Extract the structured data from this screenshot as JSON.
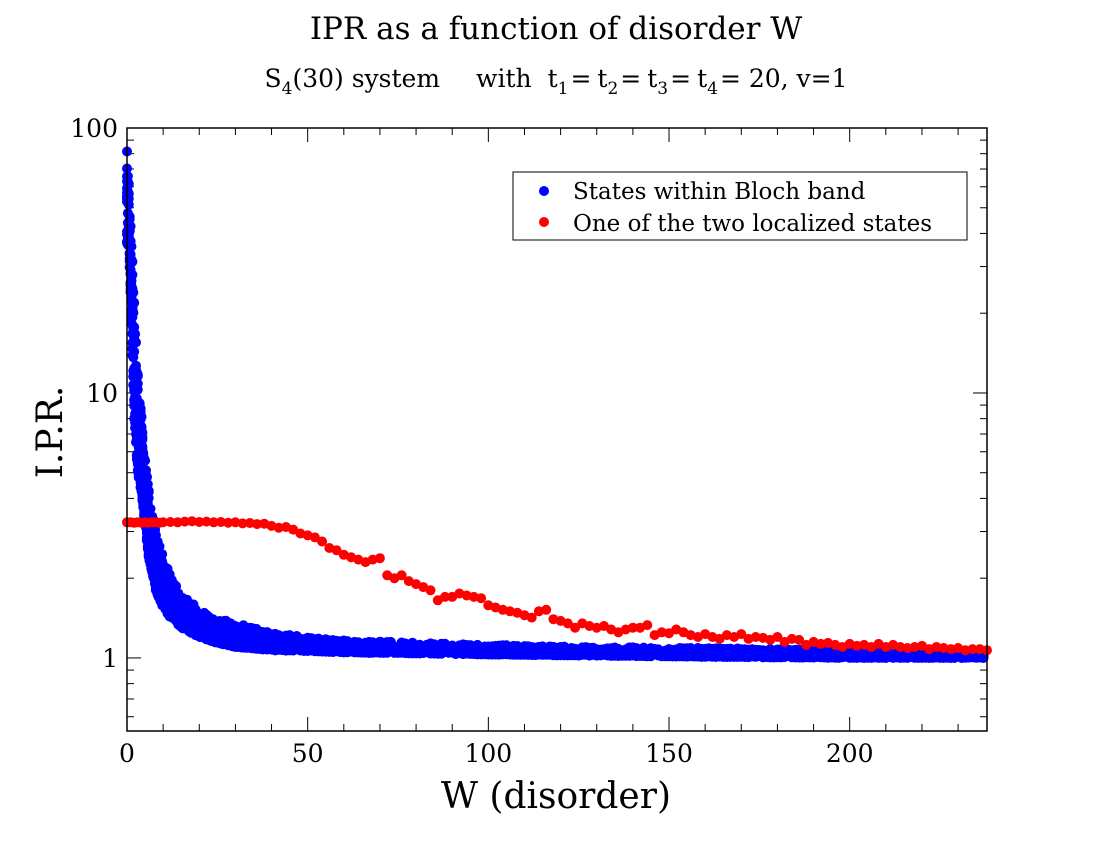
{
  "chart_data": {
    "type": "scatter",
    "title": "IPR as a function of disorder W",
    "subtitle": {
      "system_prefix": "S",
      "system_sub": "4",
      "system_rest": "(30) system",
      "with_word": "with",
      "params": [
        {
          "base": "t",
          "sub": "1"
        },
        {
          "base": "t",
          "sub": "2"
        },
        {
          "base": "t",
          "sub": "3"
        },
        {
          "base": "t",
          "sub": "4"
        }
      ],
      "tail": "= 20, v=1"
    },
    "xlabel": "W (disorder)",
    "ylabel": "I.P.R.",
    "xlim": [
      0,
      238
    ],
    "ylim": [
      0.53,
      100
    ],
    "yscale": "log",
    "xticks": [
      0,
      50,
      100,
      150,
      200
    ],
    "xtick_labels": [
      "0",
      "50",
      "100",
      "150",
      "200"
    ],
    "yticks": [
      1,
      10,
      100
    ],
    "ytick_labels": [
      "1",
      "10",
      "100"
    ],
    "legend_position": "top-right",
    "series": [
      {
        "name": "States within Bloch band",
        "color": "#0000ff",
        "band": [
          [
            0.0,
            35,
            82
          ],
          [
            0.5,
            36,
            63
          ],
          [
            1.0,
            24,
            45
          ],
          [
            2.0,
            8,
            22
          ],
          [
            3.0,
            5.0,
            12
          ],
          [
            4.0,
            4.2,
            8.2
          ],
          [
            5.0,
            3.2,
            5.6
          ],
          [
            6.0,
            2.4,
            4.3
          ],
          [
            7.0,
            2.1,
            3.6
          ],
          [
            8.0,
            1.8,
            3.0
          ],
          [
            10.0,
            1.55,
            2.4
          ],
          [
            12.0,
            1.42,
            2.05
          ],
          [
            15.0,
            1.3,
            1.75
          ],
          [
            20.0,
            1.2,
            1.55
          ],
          [
            25.0,
            1.14,
            1.43
          ],
          [
            30.0,
            1.1,
            1.35
          ],
          [
            40.0,
            1.07,
            1.26
          ],
          [
            50.0,
            1.06,
            1.2
          ],
          [
            60.0,
            1.05,
            1.17
          ],
          [
            80.0,
            1.04,
            1.14
          ],
          [
            100.0,
            1.03,
            1.12
          ],
          [
            130.0,
            1.02,
            1.1
          ],
          [
            160.0,
            1.01,
            1.09
          ],
          [
            200.0,
            1.0,
            1.07
          ],
          [
            238.0,
            1.0,
            1.06
          ]
        ]
      },
      {
        "name": "One of the two localized states",
        "color": "#ff0000",
        "points": [
          [
            0,
            3.25
          ],
          [
            1,
            3.25
          ],
          [
            2,
            3.24
          ],
          [
            3,
            3.25
          ],
          [
            4,
            3.24
          ],
          [
            5,
            3.25
          ],
          [
            6,
            3.24
          ],
          [
            7,
            3.25
          ],
          [
            8,
            3.25
          ],
          [
            9,
            3.24
          ],
          [
            10,
            3.25
          ],
          [
            12,
            3.26
          ],
          [
            14,
            3.25
          ],
          [
            16,
            3.27
          ],
          [
            18,
            3.28
          ],
          [
            20,
            3.26
          ],
          [
            22,
            3.27
          ],
          [
            24,
            3.25
          ],
          [
            26,
            3.26
          ],
          [
            28,
            3.24
          ],
          [
            30,
            3.25
          ],
          [
            32,
            3.22
          ],
          [
            34,
            3.23
          ],
          [
            36,
            3.2
          ],
          [
            38,
            3.21
          ],
          [
            40,
            3.15
          ],
          [
            42,
            3.1
          ],
          [
            44,
            3.12
          ],
          [
            46,
            3.05
          ],
          [
            48,
            2.95
          ],
          [
            50,
            2.9
          ],
          [
            52,
            2.85
          ],
          [
            54,
            2.75
          ],
          [
            56,
            2.6
          ],
          [
            58,
            2.55
          ],
          [
            60,
            2.45
          ],
          [
            62,
            2.4
          ],
          [
            64,
            2.35
          ],
          [
            66,
            2.3
          ],
          [
            68,
            2.35
          ],
          [
            70,
            2.38
          ],
          [
            72,
            2.05
          ],
          [
            74,
            2.0
          ],
          [
            76,
            2.05
          ],
          [
            78,
            1.95
          ],
          [
            80,
            1.9
          ],
          [
            82,
            1.85
          ],
          [
            84,
            1.8
          ],
          [
            86,
            1.65
          ],
          [
            88,
            1.7
          ],
          [
            90,
            1.7
          ],
          [
            92,
            1.75
          ],
          [
            94,
            1.72
          ],
          [
            96,
            1.7
          ],
          [
            98,
            1.68
          ],
          [
            100,
            1.58
          ],
          [
            102,
            1.55
          ],
          [
            104,
            1.52
          ],
          [
            106,
            1.5
          ],
          [
            108,
            1.48
          ],
          [
            110,
            1.45
          ],
          [
            112,
            1.42
          ],
          [
            114,
            1.5
          ],
          [
            116,
            1.52
          ],
          [
            118,
            1.4
          ],
          [
            120,
            1.38
          ],
          [
            122,
            1.35
          ],
          [
            124,
            1.3
          ],
          [
            126,
            1.35
          ],
          [
            128,
            1.32
          ],
          [
            130,
            1.3
          ],
          [
            132,
            1.32
          ],
          [
            134,
            1.28
          ],
          [
            136,
            1.25
          ],
          [
            138,
            1.28
          ],
          [
            140,
            1.3
          ],
          [
            142,
            1.3
          ],
          [
            144,
            1.33
          ],
          [
            146,
            1.22
          ],
          [
            148,
            1.25
          ],
          [
            150,
            1.24
          ],
          [
            152,
            1.28
          ],
          [
            154,
            1.25
          ],
          [
            156,
            1.22
          ],
          [
            158,
            1.2
          ],
          [
            160,
            1.23
          ],
          [
            162,
            1.2
          ],
          [
            164,
            1.18
          ],
          [
            166,
            1.22
          ],
          [
            168,
            1.2
          ],
          [
            170,
            1.23
          ],
          [
            172,
            1.18
          ],
          [
            174,
            1.2
          ],
          [
            176,
            1.19
          ],
          [
            178,
            1.17
          ],
          [
            180,
            1.2
          ],
          [
            182,
            1.15
          ],
          [
            184,
            1.18
          ],
          [
            186,
            1.17
          ],
          [
            188,
            1.12
          ],
          [
            190,
            1.15
          ],
          [
            192,
            1.13
          ],
          [
            194,
            1.14
          ],
          [
            196,
            1.12
          ],
          [
            198,
            1.1
          ],
          [
            200,
            1.13
          ],
          [
            202,
            1.11
          ],
          [
            204,
            1.12
          ],
          [
            206,
            1.1
          ],
          [
            208,
            1.13
          ],
          [
            210,
            1.1
          ],
          [
            212,
            1.12
          ],
          [
            214,
            1.1
          ],
          [
            216,
            1.09
          ],
          [
            218,
            1.1
          ],
          [
            220,
            1.11
          ],
          [
            222,
            1.08
          ],
          [
            224,
            1.1
          ],
          [
            226,
            1.09
          ],
          [
            228,
            1.08
          ],
          [
            230,
            1.09
          ],
          [
            232,
            1.07
          ],
          [
            234,
            1.08
          ],
          [
            236,
            1.08
          ],
          [
            238,
            1.07
          ]
        ]
      }
    ]
  }
}
